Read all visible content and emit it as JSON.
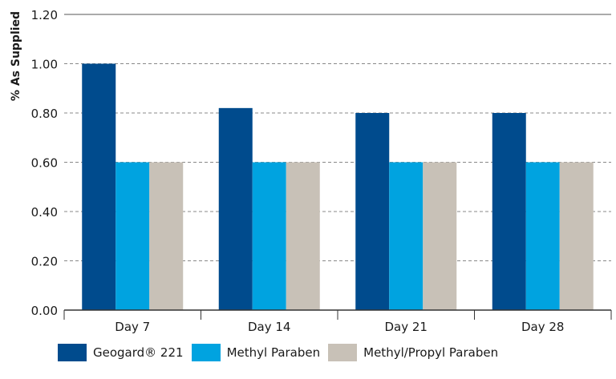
{
  "chart_data": {
    "type": "bar",
    "title": "",
    "xlabel": "",
    "ylabel": "% As Supplied",
    "categories": [
      "Day 7",
      "Day 14",
      "Day 21",
      "Day 28"
    ],
    "ylim": [
      0,
      1.2
    ],
    "yticks": [
      "0.00",
      "0.20",
      "0.40",
      "0.60",
      "0.80",
      "1.00",
      "1.20"
    ],
    "grid": true,
    "legend_position": "bottom",
    "series": [
      {
        "name": "Geogard® 221",
        "color": "#004b8d",
        "values": [
          1.0,
          0.82,
          0.8,
          0.8
        ]
      },
      {
        "name": "Methyl Paraben",
        "color": "#00a3e0",
        "values": [
          0.6,
          0.6,
          0.6,
          0.6
        ]
      },
      {
        "name": "Methyl/Propyl Paraben",
        "color": "#c8c1b7",
        "values": [
          0.6,
          0.6,
          0.6,
          0.6
        ]
      }
    ]
  }
}
